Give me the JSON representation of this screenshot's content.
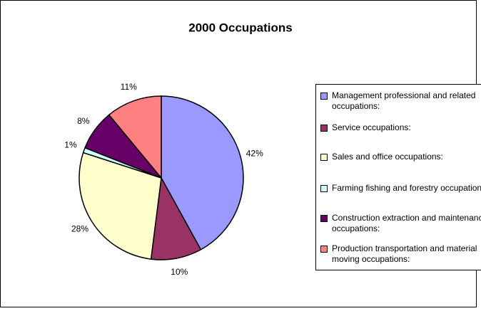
{
  "chart_data": {
    "type": "pie",
    "title": "2000 Occupations",
    "categories": [
      "Management professional and related occupations:",
      "Service occupations:",
      "Sales and office occupations:",
      "Farming fishing and forestry occupations",
      "Construction extraction and maintenance occupations:",
      "Production transportation and material moving occupations:"
    ],
    "values": [
      42,
      10,
      28,
      1,
      8,
      11
    ],
    "value_labels": [
      "42%",
      "10%",
      "28%",
      "1%",
      "8%",
      "11%"
    ],
    "colors": [
      "#9999ff",
      "#993366",
      "#ffffcc",
      "#ccffff",
      "#660066",
      "#ff8080"
    ],
    "legend": "right"
  }
}
